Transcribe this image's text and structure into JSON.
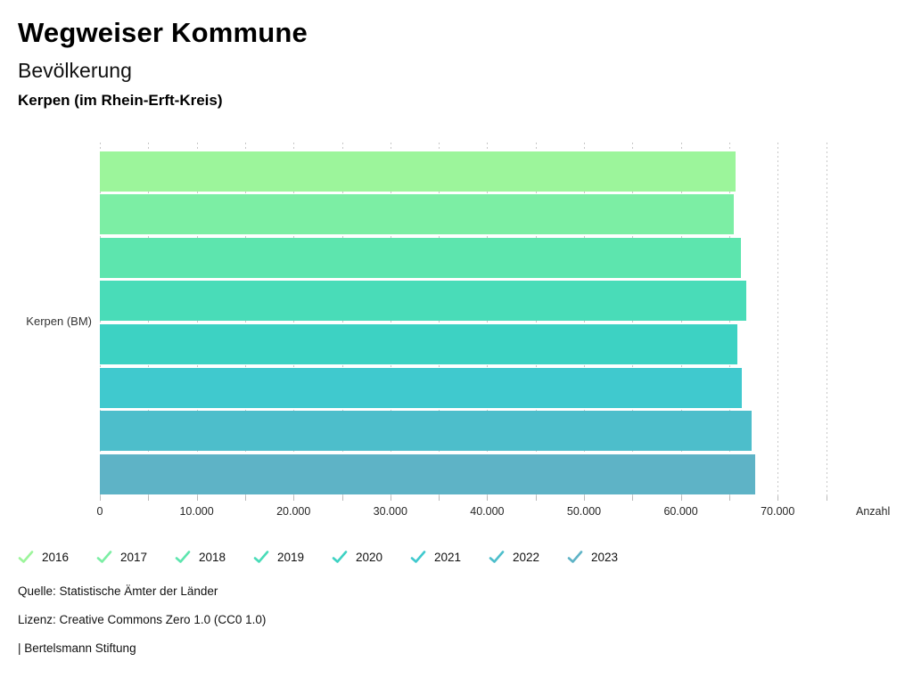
{
  "header": {
    "title": "Wegweiser Kommune",
    "subtitle": "Bevölkerung",
    "location": "Kerpen (im Rhein-Erft-Kreis)"
  },
  "chart_data": {
    "type": "bar",
    "orientation": "horizontal",
    "group_label": "Kerpen (BM)",
    "xlabel": "Anzahl",
    "xlim": [
      0,
      75000
    ],
    "x_major_tick_step": 10000,
    "x_minor_tick_step": 5000,
    "x_tick_labels": [
      "0",
      "10.000",
      "20.000",
      "30.000",
      "40.000",
      "50.000",
      "60.000",
      "70.000"
    ],
    "grid": "vertical-dotted-every-5000",
    "legend_position": "bottom",
    "series": [
      {
        "name": "2016",
        "value": 65650,
        "color": "#9CF59B"
      },
      {
        "name": "2017",
        "value": 65480,
        "color": "#7CEEA4"
      },
      {
        "name": "2018",
        "value": 66190,
        "color": "#5DE5AE"
      },
      {
        "name": "2019",
        "value": 66740,
        "color": "#49DCB8"
      },
      {
        "name": "2020",
        "value": 65820,
        "color": "#3DD2C3"
      },
      {
        "name": "2021",
        "value": 66310,
        "color": "#40C9CE"
      },
      {
        "name": "2022",
        "value": 67320,
        "color": "#4DBECB"
      },
      {
        "name": "2023",
        "value": 67690,
        "color": "#5EB3C6"
      }
    ]
  },
  "footer": {
    "source": "Quelle: Statistische Ämter der Länder",
    "license": "Lizenz: Creative Commons Zero 1.0 (CC0 1.0)",
    "attribution": "| Bertelsmann Stiftung"
  }
}
